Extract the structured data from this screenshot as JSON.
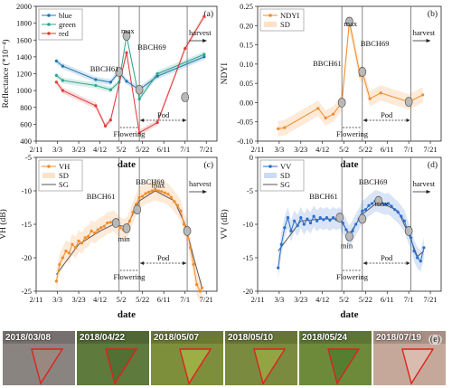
{
  "chart_data": [
    {
      "panel": "(a)",
      "type": "line",
      "xlabel": "date",
      "ylabel": "Reflectance (*10⁻⁴)",
      "ylim": [
        400,
        2000
      ],
      "yticks": [
        "400",
        "600",
        "800",
        "1000",
        "1200",
        "1400",
        "1600",
        "1800",
        "2000"
      ],
      "xticks": [
        "2/11",
        "3/3",
        "3/23",
        "4/12",
        "5/2",
        "5/22",
        "6/11",
        "7/1",
        "7/21"
      ],
      "legend": "top-left",
      "series": [
        {
          "name": "blue",
          "color": "#1f77b4",
          "points": [
            [
              "2018-03-02",
              1350
            ],
            [
              "2018-03-08",
              1290
            ],
            [
              "2018-04-08",
              1130
            ],
            [
              "2018-04-22",
              1100
            ],
            [
              "2018-04-30",
              1220
            ],
            [
              "2018-05-07",
              1110
            ],
            [
              "2018-05-19",
              1010
            ],
            [
              "2018-06-05",
              1170
            ],
            [
              "2018-07-19",
              1400
            ]
          ]
        },
        {
          "name": "green",
          "color": "#2ca58d",
          "points": [
            [
              "2018-03-02",
              1180
            ],
            [
              "2018-03-08",
              1120
            ],
            [
              "2018-04-08",
              1060
            ],
            [
              "2018-04-22",
              1010
            ],
            [
              "2018-04-30",
              1100
            ],
            [
              "2018-05-07",
              1650
            ],
            [
              "2018-05-19",
              900
            ],
            [
              "2018-06-05",
              1200
            ],
            [
              "2018-07-19",
              1430
            ]
          ]
        },
        {
          "name": "red",
          "color": "#e03a3a",
          "points": [
            [
              "2018-03-02",
              1100
            ],
            [
              "2018-03-08",
              1000
            ],
            [
              "2018-04-08",
              820
            ],
            [
              "2018-04-17",
              580
            ],
            [
              "2018-04-22",
              650
            ],
            [
              "2018-05-07",
              1450
            ],
            [
              "2018-05-19",
              500
            ],
            [
              "2018-06-05",
              620
            ],
            [
              "2018-07-01",
              1500
            ],
            [
              "2018-07-19",
              1880
            ]
          ]
        }
      ],
      "annotations": [
        "BBCH61",
        "max",
        "BBCH69",
        "Flowering",
        "Pod",
        "harvest"
      ]
    },
    {
      "panel": "(b)",
      "type": "line",
      "xlabel": "date",
      "ylabel": "NDYI",
      "ylim": [
        -0.1,
        0.25
      ],
      "yticks": [
        "-0.10",
        "-0.05",
        "0.00",
        "0.05",
        "0.10",
        "0.15",
        "0.20",
        "0.25"
      ],
      "xticks": [
        "2/11",
        "3/3",
        "3/23",
        "4/12",
        "5/2",
        "5/22",
        "6/11",
        "7/1",
        "7/21"
      ],
      "legend": "top-left",
      "series": [
        {
          "name": "NDYI",
          "color": "#f28c28",
          "points": [
            [
              "2018-03-02",
              -0.068
            ],
            [
              "2018-03-08",
              -0.065
            ],
            [
              "2018-04-08",
              -0.015
            ],
            [
              "2018-04-15",
              -0.04
            ],
            [
              "2018-04-22",
              -0.03
            ],
            [
              "2018-04-30",
              0.0
            ],
            [
              "2018-05-07",
              0.21
            ],
            [
              "2018-05-17",
              0.07
            ],
            [
              "2018-05-19",
              0.08
            ],
            [
              "2018-05-26",
              0.01
            ],
            [
              "2018-06-05",
              0.025
            ],
            [
              "2018-07-01",
              0.002
            ],
            [
              "2018-07-14",
              0.02
            ]
          ]
        }
      ],
      "band_label": "SD",
      "annotations": [
        "BBCH61",
        "max",
        "BBCH69",
        "Flowering",
        "Pod",
        "harvest"
      ]
    },
    {
      "panel": "(c)",
      "type": "line",
      "xlabel": "date",
      "ylabel": "VH (dB)",
      "ylim": [
        -25,
        -5
      ],
      "yticks": [
        "-25",
        "-20",
        "-15",
        "-10",
        "-5"
      ],
      "xticks": [
        "2/11",
        "3/3",
        "3/23",
        "4/12",
        "5/2",
        "5/22",
        "6/11",
        "7/1",
        "7/21"
      ],
      "legend": "top-left",
      "legend_entries": [
        "VH",
        "SD",
        "SG"
      ],
      "series": [
        {
          "name": "VH",
          "color": "#f28c28",
          "points": [
            [
              "2018-03-02",
              -23.5
            ],
            [
              "2018-03-05",
              -21.0
            ],
            [
              "2018-03-08",
              -20.0
            ],
            [
              "2018-03-11",
              -19.0
            ],
            [
              "2018-03-14",
              -19.3
            ],
            [
              "2018-03-17",
              -18.0
            ],
            [
              "2018-03-20",
              -18.5
            ],
            [
              "2018-03-23",
              -17.5
            ],
            [
              "2018-03-26",
              -17.8
            ],
            [
              "2018-03-29",
              -17.0
            ],
            [
              "2018-04-01",
              -16.8
            ],
            [
              "2018-04-04",
              -16.0
            ],
            [
              "2018-04-07",
              -16.3
            ],
            [
              "2018-04-10",
              -15.8
            ],
            [
              "2018-04-13",
              -15.5
            ],
            [
              "2018-04-16",
              -15.3
            ],
            [
              "2018-04-19",
              -14.8
            ],
            [
              "2018-04-22",
              -14.7
            ],
            [
              "2018-04-25",
              -14.5
            ],
            [
              "2018-04-28",
              -15.0
            ],
            [
              "2018-05-01",
              -15.5
            ],
            [
              "2018-05-04",
              -15.8
            ],
            [
              "2018-05-07",
              -15.6
            ],
            [
              "2018-05-10",
              -14.5
            ],
            [
              "2018-05-13",
              -13.2
            ],
            [
              "2018-05-16",
              -12.0
            ],
            [
              "2018-05-19",
              -11.0
            ],
            [
              "2018-05-22",
              -10.8
            ],
            [
              "2018-05-25",
              -10.4
            ],
            [
              "2018-05-28",
              -10.2
            ],
            [
              "2018-05-31",
              -10.0
            ],
            [
              "2018-06-03",
              -9.8
            ],
            [
              "2018-06-06",
              -10.0
            ],
            [
              "2018-06-09",
              -10.1
            ],
            [
              "2018-06-12",
              -10.3
            ],
            [
              "2018-06-15",
              -10.5
            ],
            [
              "2018-06-18",
              -11.0
            ],
            [
              "2018-06-21",
              -11.6
            ],
            [
              "2018-06-24",
              -12.2
            ],
            [
              "2018-06-27",
              -13.0
            ],
            [
              "2018-06-30",
              -15.0
            ],
            [
              "2018-07-03",
              -16.0
            ],
            [
              "2018-07-06",
              -18.5
            ],
            [
              "2018-07-09",
              -21.0
            ],
            [
              "2018-07-12",
              -24.0
            ],
            [
              "2018-07-15",
              -25.0
            ],
            [
              "2018-07-17",
              -24.5
            ]
          ]
        }
      ],
      "sg_curve": [
        [
          "2018-03-02",
          -22.5
        ],
        [
          "2018-03-23",
          -18.0
        ],
        [
          "2018-04-12",
          -16.0
        ],
        [
          "2018-04-25",
          -15.0
        ],
        [
          "2018-05-07",
          -15.4
        ],
        [
          "2018-05-19",
          -11.5
        ],
        [
          "2018-06-03",
          -10.0
        ],
        [
          "2018-06-21",
          -11.5
        ],
        [
          "2018-07-01",
          -15.0
        ],
        [
          "2018-07-10",
          -20.5
        ],
        [
          "2018-07-17",
          -24.5
        ]
      ],
      "markers": [
        [
          "2018-04-27",
          -14.8
        ],
        [
          "2018-05-07",
          -15.6
        ],
        [
          "2018-05-17",
          -12.8
        ],
        [
          "2018-07-03",
          -16.0
        ]
      ],
      "annotations": [
        "BBCH61",
        "BBCH69",
        "max",
        "min",
        "harvest",
        "Flowering",
        "Pod"
      ]
    },
    {
      "panel": "(d)",
      "type": "line",
      "xlabel": "date",
      "ylabel": "VV (dB)",
      "ylim": [
        -20,
        0
      ],
      "yticks": [
        "-20",
        "-15",
        "-10",
        "-5",
        "0"
      ],
      "xticks": [
        "2/11",
        "3/3",
        "3/23",
        "4/12",
        "5/2",
        "5/22",
        "6/11",
        "7/1",
        "7/21"
      ],
      "legend": "top-left",
      "legend_entries": [
        "VV",
        "SD",
        "SG"
      ],
      "series": [
        {
          "name": "VV",
          "color": "#2a6fcf",
          "points": [
            [
              "2018-03-02",
              -16.5
            ],
            [
              "2018-03-05",
              -13.0
            ],
            [
              "2018-03-08",
              -10.5
            ],
            [
              "2018-03-11",
              -9.0
            ],
            [
              "2018-03-14",
              -11.0
            ],
            [
              "2018-03-17",
              -9.5
            ],
            [
              "2018-03-20",
              -10.2
            ],
            [
              "2018-03-23",
              -9.0
            ],
            [
              "2018-03-26",
              -10.0
            ],
            [
              "2018-03-29",
              -9.2
            ],
            [
              "2018-04-01",
              -9.8
            ],
            [
              "2018-04-04",
              -8.8
            ],
            [
              "2018-04-07",
              -9.5
            ],
            [
              "2018-04-10",
              -9.0
            ],
            [
              "2018-04-13",
              -9.3
            ],
            [
              "2018-04-16",
              -9.0
            ],
            [
              "2018-04-19",
              -9.4
            ],
            [
              "2018-04-22",
              -9.0
            ],
            [
              "2018-04-25",
              -9.3
            ],
            [
              "2018-04-28",
              -9.0
            ],
            [
              "2018-05-01",
              -9.8
            ],
            [
              "2018-05-04",
              -10.8
            ],
            [
              "2018-05-07",
              -11.8
            ],
            [
              "2018-05-10",
              -11.0
            ],
            [
              "2018-05-13",
              -10.0
            ],
            [
              "2018-05-16",
              -9.2
            ],
            [
              "2018-05-19",
              -8.0
            ],
            [
              "2018-05-22",
              -7.8
            ],
            [
              "2018-05-25",
              -7.2
            ],
            [
              "2018-05-28",
              -6.9
            ],
            [
              "2018-05-31",
              -6.5
            ],
            [
              "2018-06-03",
              -6.6
            ],
            [
              "2018-06-06",
              -6.8
            ],
            [
              "2018-06-09",
              -7.0
            ],
            [
              "2018-06-12",
              -6.9
            ],
            [
              "2018-06-15",
              -7.3
            ],
            [
              "2018-06-18",
              -7.8
            ],
            [
              "2018-06-21",
              -8.2
            ],
            [
              "2018-06-24",
              -8.8
            ],
            [
              "2018-06-27",
              -9.5
            ],
            [
              "2018-06-30",
              -11.0
            ],
            [
              "2018-07-03",
              -12.0
            ],
            [
              "2018-07-06",
              -14.0
            ],
            [
              "2018-07-09",
              -15.0
            ],
            [
              "2018-07-12",
              -15.5
            ],
            [
              "2018-07-15",
              -13.5
            ]
          ]
        }
      ],
      "sg_curve": [
        [
          "2018-03-02",
          -14.0
        ],
        [
          "2018-03-23",
          -9.5
        ],
        [
          "2018-04-12",
          -9.2
        ],
        [
          "2018-04-28",
          -9.2
        ],
        [
          "2018-05-07",
          -11.5
        ],
        [
          "2018-05-19",
          -8.5
        ],
        [
          "2018-06-03",
          -6.6
        ],
        [
          "2018-06-21",
          -8.0
        ],
        [
          "2018-07-01",
          -11.5
        ],
        [
          "2018-07-09",
          -14.8
        ],
        [
          "2018-07-15",
          -14.0
        ]
      ],
      "markers": [
        [
          "2018-04-28",
          -9.0
        ],
        [
          "2018-05-07",
          -11.8
        ],
        [
          "2018-05-19",
          -9.2
        ],
        [
          "2018-06-03",
          -6.5
        ],
        [
          "2018-07-01",
          -11.0
        ]
      ],
      "annotations": [
        "BBCH61",
        "BBCH69",
        "max",
        "min",
        "harvest",
        "Flowering",
        "Pod"
      ]
    }
  ],
  "thumbnails": {
    "panel": "(e)",
    "dates": [
      "2018/03/08",
      "2018/04/22",
      "2018/05/07",
      "2018/05/10",
      "2018/05/24",
      "2018/07/19"
    ],
    "base_colors": [
      "#8a8480",
      "#5f7a3d",
      "#7e8f3b",
      "#7a8a3e",
      "#6d8a3b",
      "#c6a89a"
    ],
    "field_colors": [
      "#9d8a80",
      "#4e6d30",
      "#a8b84a",
      "#9cae44",
      "#4f7a2e",
      "#e0c2b6"
    ]
  }
}
